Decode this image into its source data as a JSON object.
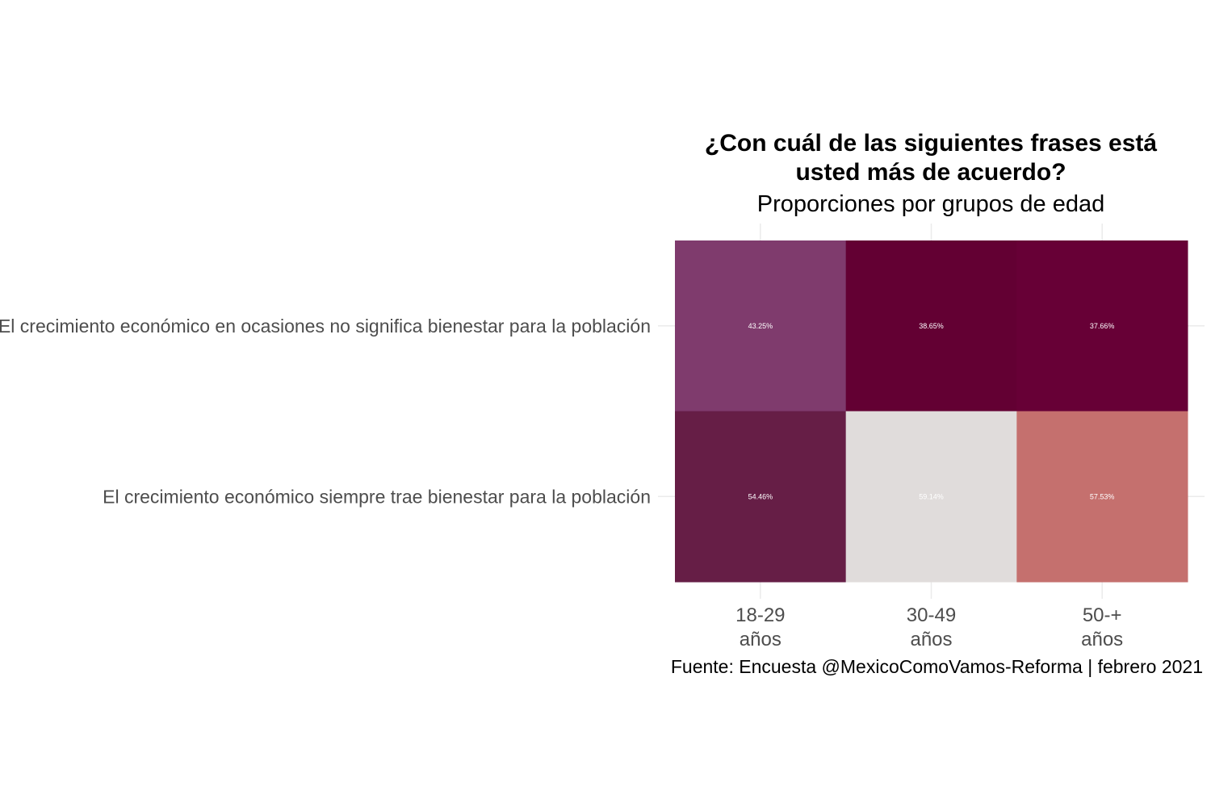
{
  "chart_data": {
    "type": "heatmap",
    "title": [
      "¿Con cuál de las siguientes frases está",
      "usted más de acuerdo?"
    ],
    "subtitle": "Proporciones por grupos de edad",
    "caption": "Fuente: Encuesta @MexicoComoVamos-Reforma | febrero 2021",
    "x_categories": [
      {
        "line1": "18-29",
        "line2": "años"
      },
      {
        "line1": "30-49",
        "line2": "años"
      },
      {
        "line1": "50-+",
        "line2": "años"
      }
    ],
    "y_categories": [
      "El crecimiento económico en ocasiones no significa bienestar para la población",
      "El crecimiento económico siempre trae bienestar para la población"
    ],
    "values": [
      [
        43.25,
        38.65,
        37.66
      ],
      [
        54.46,
        59.14,
        57.53
      ]
    ],
    "labels": [
      [
        "43.25%",
        "38.65%",
        "37.66%"
      ],
      [
        "54.46%",
        "59.14%",
        "57.53%"
      ]
    ],
    "colors": [
      [
        "#7f3b6d",
        "#630033",
        "#670036"
      ],
      [
        "#661e46",
        "#e0dcdb",
        "#c5706e"
      ]
    ],
    "legend": "none",
    "grid": true
  }
}
